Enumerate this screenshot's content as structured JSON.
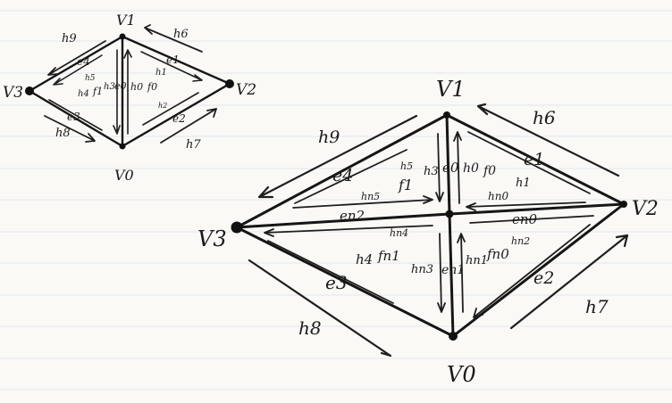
{
  "small_mesh": {
    "vertices": {
      "v1": "V1",
      "v0": "V0",
      "v2": "V2",
      "v3": "V3"
    },
    "edges": {
      "e0": "e0",
      "e1": "e1",
      "e3": "e3",
      "e4": "e4",
      "e2": "e2"
    },
    "halfedges": {
      "h0": "h0",
      "h1": "h1",
      "h2": "h2",
      "h3": "h3",
      "h4": "h4",
      "h5": "h5",
      "h6": "h6",
      "h7": "h7",
      "h8": "h8",
      "h9": "h9"
    },
    "faces": {
      "f0": "f0",
      "f1": "f1"
    }
  },
  "large_mesh": {
    "vertices": {
      "v1": "V1",
      "v0": "V0",
      "v2": "V2",
      "v3": "V3"
    },
    "edges": {
      "e0": "e0",
      "e1": "e1",
      "e2": "e2",
      "e3": "e3",
      "e4": "e4",
      "en0": "en0",
      "en1": "en1",
      "en2": "en2"
    },
    "halfedges": {
      "h0": "h0",
      "h1": "h1",
      "h3": "h3",
      "h4": "h4",
      "h5": "h5",
      "h6": "h6",
      "h7": "h7",
      "h8": "h8",
      "h9": "h9",
      "hn0": "hn0",
      "hn1": "hn1",
      "hn2": "hn2",
      "hn3": "hn3",
      "hn4": "hn4",
      "hn5": "hn5"
    },
    "faces": {
      "f0": "f0",
      "f1": "f1",
      "fn0": "fn0",
      "fn1": "fn1"
    }
  }
}
